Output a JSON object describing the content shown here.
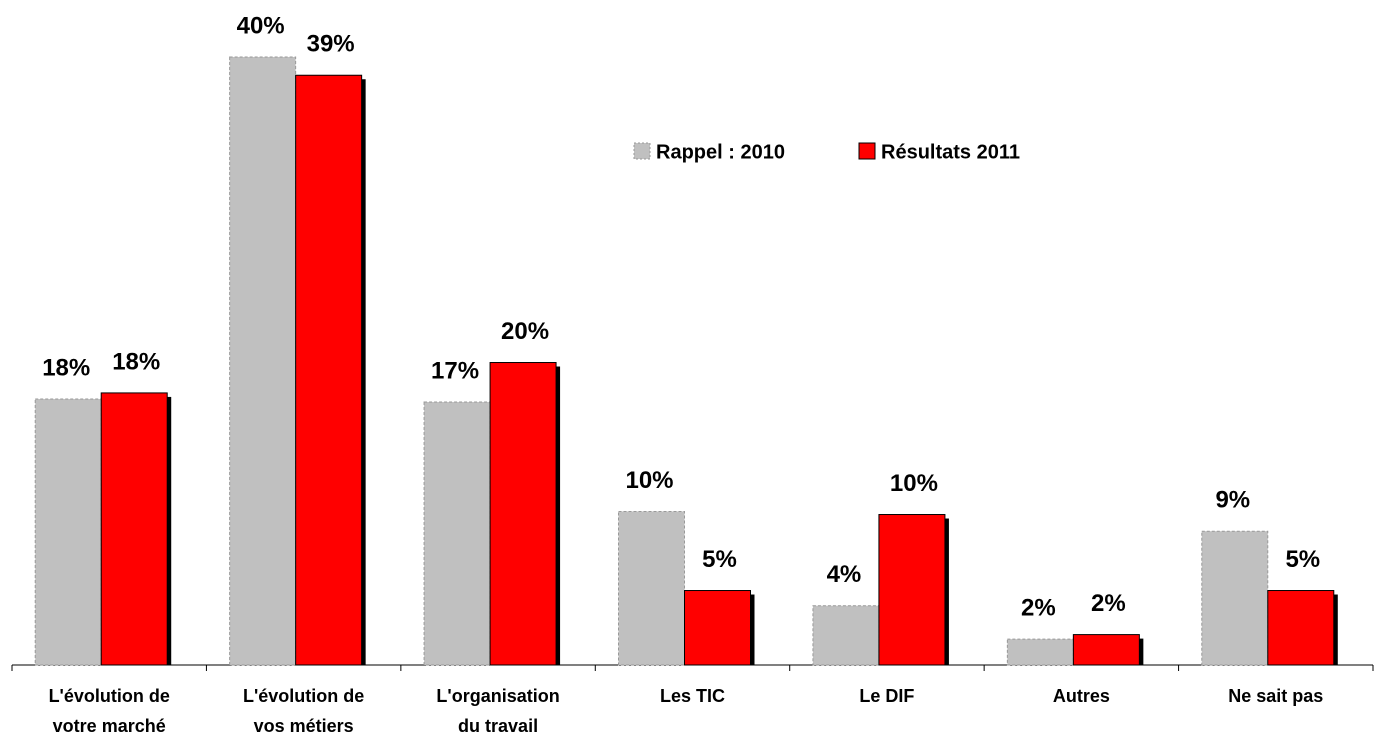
{
  "chart_data": {
    "type": "bar",
    "categories": [
      [
        "L'évolution de",
        "votre marché"
      ],
      [
        "L'évolution de",
        "vos métiers"
      ],
      [
        "L'organisation",
        "du travail"
      ],
      [
        "Les TIC"
      ],
      [
        "Le DIF"
      ],
      [
        "Autres"
      ],
      [
        "Ne sait pas"
      ]
    ],
    "series": [
      {
        "name": "Rappel : 2010",
        "color": "#c0c0c0",
        "values": [
          17.5,
          40,
          17.3,
          10.1,
          3.9,
          1.7,
          8.8
        ],
        "value_labels": [
          "18%",
          "40%",
          "17%",
          "10%",
          "4%",
          "2%",
          "9%"
        ]
      },
      {
        "name": "Résultats 2011",
        "color": "#ff0000",
        "values": [
          17.9,
          38.8,
          19.9,
          4.9,
          9.9,
          2.0,
          4.9
        ],
        "value_labels": [
          "18%",
          "39%",
          "20%",
          "5%",
          "10%",
          "2%",
          "5%"
        ]
      }
    ],
    "ylim": [
      0,
      40
    ],
    "legend": "top-right"
  }
}
